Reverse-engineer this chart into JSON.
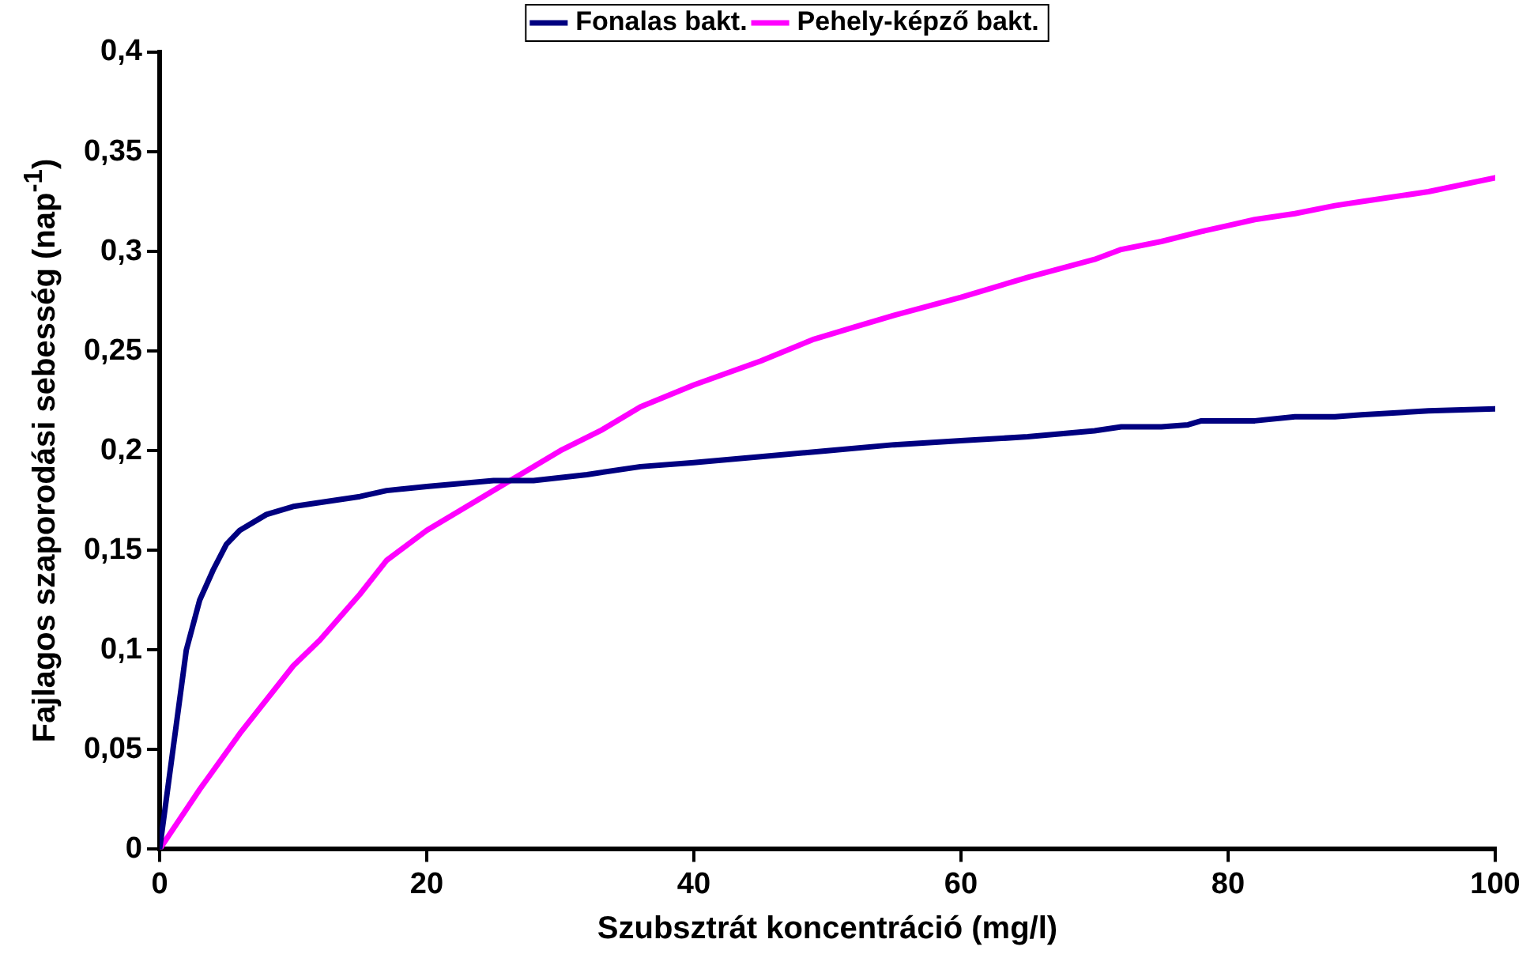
{
  "chart_data": {
    "type": "line",
    "xlabel": "Szubsztrát koncentráció (mg/l)",
    "ylabel": "Fajlagos szaporodási sebesség (nap$^{-1}$)",
    "xlim": [
      0,
      100
    ],
    "xticks": [
      0,
      20,
      40,
      60,
      80,
      100
    ],
    "ylim": [
      0,
      0.4
    ],
    "yticks": [
      0,
      {
        "value": 0.05,
        "label": "0,05"
      },
      {
        "value": 0.1,
        "label": "0,1"
      },
      {
        "value": 0.15,
        "label": "0,15"
      },
      {
        "value": 0.2,
        "label": "0,2"
      },
      {
        "value": 0.25,
        "label": "0,25"
      },
      {
        "value": 0.3,
        "label": "0,3"
      },
      {
        "value": 0.35,
        "label": "0,35"
      },
      {
        "value": 0.4,
        "label": "0,4"
      }
    ],
    "grid": false,
    "legend": "top",
    "marker": "none",
    "line_style": "solid",
    "series": [
      {
        "name": "Fonalas bakt.",
        "color": "#000080",
        "x": [
          0,
          1,
          2,
          3,
          4,
          5,
          6,
          8,
          10,
          11,
          13,
          15,
          17,
          20,
          25,
          28,
          32,
          36,
          40,
          45,
          50,
          55,
          60,
          65,
          70,
          72,
          75,
          77,
          78,
          80,
          82,
          85,
          88,
          90,
          95,
          100
        ],
        "values": [
          0,
          0.05,
          0.1,
          0.125,
          0.14,
          0.153,
          0.16,
          0.168,
          0.172,
          0.173,
          0.175,
          0.177,
          0.18,
          0.182,
          0.185,
          0.185,
          0.188,
          0.192,
          0.194,
          0.197,
          0.2,
          0.203,
          0.205,
          0.207,
          0.21,
          0.212,
          0.212,
          0.213,
          0.215,
          0.215,
          0.215,
          0.217,
          0.217,
          0.218,
          0.22,
          0.221
        ]
      },
      {
        "name": "Pehely-képző bakt.",
        "color": "#ff00ff",
        "x": [
          0,
          3,
          6,
          10,
          12,
          15,
          17,
          20,
          23,
          26,
          30,
          33,
          36,
          40,
          45,
          49,
          52,
          55,
          60,
          65,
          70,
          72,
          75,
          78,
          80,
          82,
          85,
          88,
          90,
          95,
          100
        ],
        "values": [
          0,
          0.03,
          0.058,
          0.092,
          0.105,
          0.128,
          0.145,
          0.16,
          0.172,
          0.184,
          0.2,
          0.21,
          0.222,
          0.233,
          0.245,
          0.256,
          0.262,
          0.268,
          0.277,
          0.287,
          0.296,
          0.301,
          0.305,
          0.31,
          0.313,
          0.316,
          0.319,
          0.323,
          0.325,
          0.33,
          0.337
        ]
      }
    ]
  }
}
